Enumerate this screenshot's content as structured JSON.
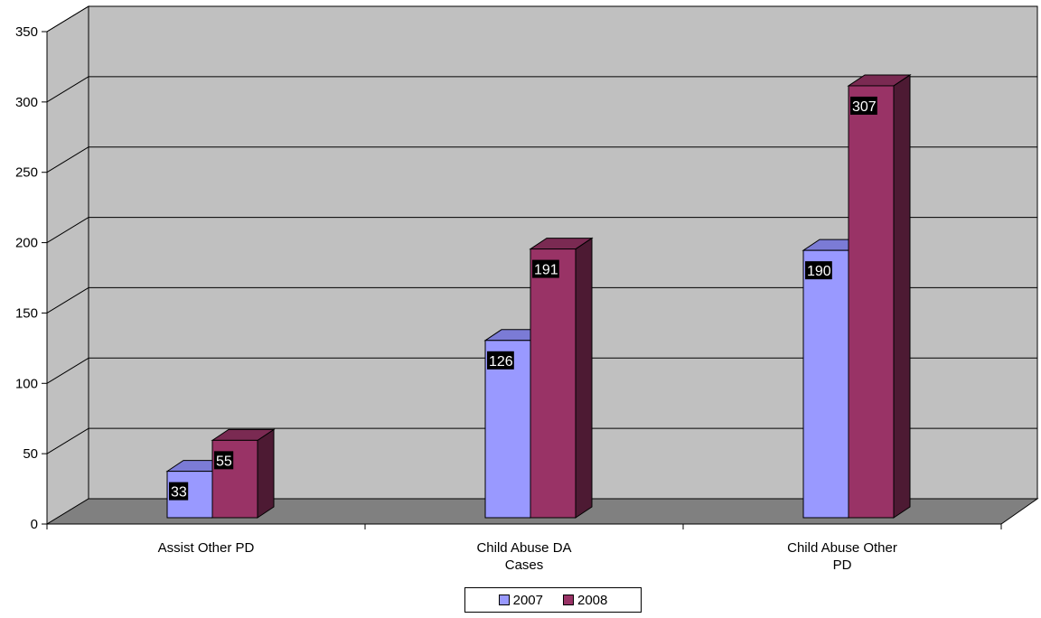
{
  "chart_data": {
    "type": "bar",
    "categories": [
      "Assist Other PD",
      "Child Abuse DA Cases",
      "Child Abuse Other PD"
    ],
    "category_lines": [
      [
        "Assist Other PD"
      ],
      [
        "Child Abuse DA",
        "Cases"
      ],
      [
        "Child Abuse Other",
        "PD"
      ]
    ],
    "series": [
      {
        "name": "2007",
        "values": [
          33,
          126,
          190
        ],
        "color": "#9999ff",
        "top_color": "#7b7bd6",
        "side_color": "#5a5aa8"
      },
      {
        "name": "2008",
        "values": [
          55,
          191,
          307
        ],
        "color": "#993366",
        "top_color": "#7a2a52",
        "side_color": "#4d1a33"
      }
    ],
    "ylim": [
      0,
      350
    ],
    "yticks": [
      0,
      50,
      100,
      150,
      200,
      250,
      300,
      350
    ],
    "grid": true,
    "legend_position": "bottom",
    "wall_color": "#c0c0c0",
    "floor_color": "#808080",
    "label_bg": "#000000",
    "label_color": "#ffffff"
  }
}
